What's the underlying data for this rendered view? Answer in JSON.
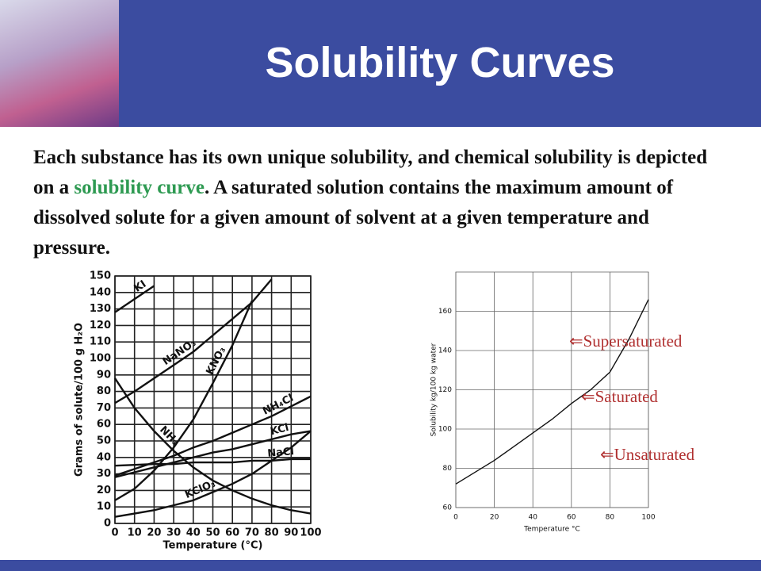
{
  "header": {
    "title": "Solubility Curves"
  },
  "paragraph": {
    "parts": [
      "Each substance has its own unique solubility, and chemical solubility is depicted on a ",
      "solubility curve",
      ".  A saturated solution contains the maximum amount of dissolved solute for a given amount of solvent at a given temperature and pressure."
    ]
  },
  "chart_data": [
    {
      "type": "line",
      "xlabel": "Temperature (°C)",
      "ylabel": "Grams of solute/100 g H₂O",
      "x": [
        0,
        10,
        20,
        30,
        40,
        50,
        60,
        70,
        80,
        90,
        100
      ],
      "xlim": [
        0,
        100
      ],
      "xticks": [
        0,
        10,
        20,
        30,
        40,
        50,
        60,
        70,
        80,
        90,
        100
      ],
      "ylim": [
        0,
        150
      ],
      "yticks": [
        0,
        10,
        20,
        30,
        40,
        50,
        60,
        70,
        80,
        90,
        100,
        110,
        120,
        130,
        140,
        150
      ],
      "grid": true,
      "series": [
        {
          "name": "KI",
          "color": "#111111",
          "values": [
            128,
            136,
            144,
            null,
            null,
            null,
            null,
            null,
            null,
            null,
            null
          ]
        },
        {
          "name": "NaNO₃",
          "color": "#111111",
          "values": [
            73,
            80,
            88,
            96,
            104,
            114,
            124,
            134,
            148,
            null,
            null
          ]
        },
        {
          "name": "KNO₃",
          "color": "#111111",
          "values": [
            14,
            21,
            32,
            46,
            63,
            85,
            108,
            135,
            null,
            null,
            null
          ]
        },
        {
          "name": "NH₃",
          "color": "#111111",
          "values": [
            88,
            70,
            56,
            44,
            34,
            26,
            20,
            15,
            11,
            8,
            6
          ]
        },
        {
          "name": "NH₄Cl",
          "color": "#111111",
          "values": [
            29,
            33,
            37,
            41,
            46,
            50,
            55,
            60,
            65,
            71,
            77
          ]
        },
        {
          "name": "KCl",
          "color": "#111111",
          "values": [
            28,
            31,
            34,
            37,
            40,
            43,
            45,
            48,
            51,
            54,
            56
          ]
        },
        {
          "name": "NaCl",
          "color": "#111111",
          "values": [
            35,
            35.5,
            36,
            36,
            37,
            37,
            37,
            38,
            38,
            39,
            39
          ]
        },
        {
          "name": "KClO₃",
          "color": "#111111",
          "values": [
            4,
            6,
            8,
            11,
            14,
            19,
            24,
            30,
            38,
            46,
            56
          ]
        }
      ]
    },
    {
      "type": "line",
      "xlabel": "Temperature  °C",
      "ylabel": "Solubility  kg/100 kg water",
      "x": [
        0,
        10,
        20,
        30,
        40,
        50,
        60,
        70,
        80,
        90,
        100
      ],
      "xlim": [
        0,
        100
      ],
      "xticks": [
        0,
        20,
        40,
        60,
        80,
        100
      ],
      "ylim": [
        60,
        180
      ],
      "yticks": [
        60,
        80,
        100,
        120,
        140,
        160
      ],
      "grid": true,
      "series": [
        {
          "name": "Solubility",
          "color": "#111111",
          "values": [
            72,
            78,
            84,
            91,
            98,
            105,
            113,
            120,
            129,
            146,
            166
          ]
        }
      ],
      "annotations": [
        "Supersaturated",
        "Saturated",
        "Unsaturated"
      ]
    }
  ]
}
